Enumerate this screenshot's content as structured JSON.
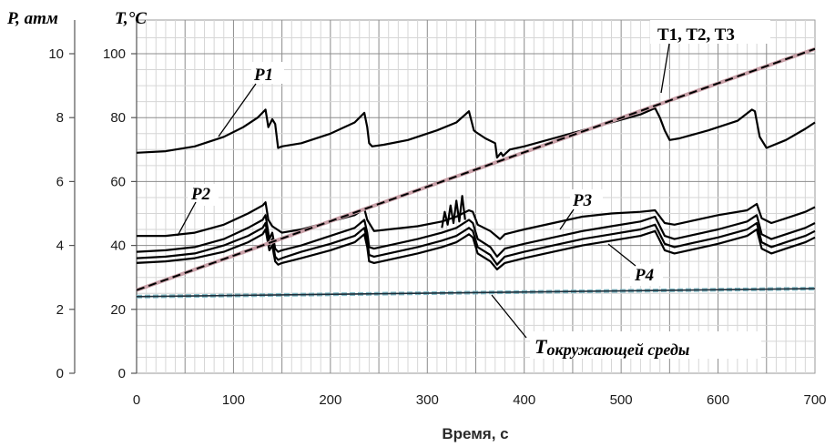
{
  "chart_data": {
    "type": "line",
    "left_axis_label": "P, атм",
    "right_axis_label": "T,°C",
    "xlabel": "Время, с",
    "xlim": [
      0,
      700
    ],
    "x_ticks": [
      "0",
      "100",
      "200",
      "300",
      "400",
      "500",
      "600",
      "700"
    ],
    "p_lim": [
      0,
      10
    ],
    "p_ticks": [
      "0",
      "2",
      "4",
      "6",
      "8",
      "10"
    ],
    "t_lim": [
      0,
      100
    ],
    "t_ticks": [
      "0",
      "20",
      "40",
      "60",
      "80",
      "100"
    ],
    "grid": true,
    "annotations": {
      "p1": "P1",
      "p2": "P2",
      "p3": "P3",
      "p4": "P4",
      "t123": "T1, T2, T3",
      "tamb_main": "T",
      "tamb_sub": "окружающей среды"
    },
    "series": [
      {
        "axis": "P",
        "x": [
          0,
          30,
          60,
          90,
          110,
          125,
          133,
          136,
          140,
          143,
          146,
          150,
          170,
          200,
          225,
          235,
          238,
          240,
          243,
          255,
          280,
          310,
          330,
          343,
          348,
          350,
          360,
          370,
          372,
          376,
          378,
          385,
          400,
          430,
          460,
          490,
          520,
          535,
          540,
          545,
          550,
          560,
          590,
          620,
          635,
          638,
          643,
          650,
          670,
          690,
          700
        ],
        "y": [
          6.9,
          6.95,
          7.1,
          7.4,
          7.7,
          8.0,
          8.25,
          7.7,
          7.95,
          7.8,
          7.05,
          7.1,
          7.2,
          7.5,
          7.85,
          8.15,
          7.7,
          7.2,
          7.1,
          7.15,
          7.3,
          7.6,
          7.85,
          8.2,
          7.6,
          7.55,
          7.35,
          7.2,
          6.75,
          6.9,
          6.8,
          7.0,
          7.1,
          7.35,
          7.6,
          7.85,
          8.1,
          8.3,
          8.0,
          7.6,
          7.3,
          7.35,
          7.6,
          7.9,
          8.25,
          8.2,
          7.4,
          7.05,
          7.3,
          7.65,
          7.85
        ]
      },
      {
        "axis": "P",
        "x": [
          0,
          30,
          60,
          90,
          115,
          130,
          133,
          136,
          140,
          145,
          150,
          170,
          200,
          225,
          235,
          238,
          245,
          260,
          290,
          315,
          330,
          343,
          347,
          352,
          365,
          375,
          380,
          400,
          430,
          460,
          490,
          520,
          535,
          545,
          555,
          570,
          600,
          630,
          640,
          645,
          655,
          670,
          690,
          700
        ],
        "y": [
          4.3,
          4.3,
          4.4,
          4.65,
          5.0,
          5.25,
          5.35,
          4.8,
          4.6,
          4.5,
          4.4,
          4.5,
          4.75,
          4.95,
          5.15,
          4.8,
          4.45,
          4.5,
          4.6,
          4.75,
          4.9,
          5.1,
          5.05,
          4.65,
          4.45,
          4.2,
          4.35,
          4.5,
          4.7,
          4.9,
          5.0,
          5.05,
          5.1,
          4.7,
          4.65,
          4.75,
          4.95,
          5.1,
          5.3,
          4.85,
          4.7,
          4.85,
          5.05,
          5.2
        ]
      },
      {
        "axis": "P",
        "x": [
          0,
          30,
          60,
          90,
          115,
          130,
          133,
          137,
          140,
          143,
          146,
          150,
          170,
          200,
          225,
          235,
          238,
          240,
          245,
          260,
          290,
          315,
          330,
          343,
          347,
          352,
          365,
          372,
          380,
          400,
          430,
          460,
          490,
          520,
          535,
          545,
          555,
          570,
          600,
          630,
          640,
          645,
          655,
          670,
          690,
          700
        ],
        "y": [
          3.8,
          3.85,
          3.95,
          4.2,
          4.55,
          4.8,
          4.95,
          4.2,
          4.4,
          3.9,
          3.8,
          3.85,
          4.0,
          4.3,
          4.55,
          4.8,
          4.4,
          3.95,
          3.9,
          4.0,
          4.2,
          4.4,
          4.55,
          4.8,
          4.7,
          4.2,
          3.95,
          3.65,
          3.9,
          4.05,
          4.25,
          4.45,
          4.6,
          4.75,
          4.9,
          4.3,
          4.2,
          4.3,
          4.5,
          4.75,
          4.95,
          4.35,
          4.2,
          4.35,
          4.55,
          4.7
        ]
      },
      {
        "axis": "P",
        "x": [
          0,
          30,
          60,
          90,
          115,
          130,
          133,
          137,
          140,
          143,
          146,
          150,
          170,
          200,
          225,
          235,
          238,
          240,
          245,
          260,
          290,
          315,
          330,
          343,
          347,
          352,
          365,
          372,
          380,
          400,
          430,
          460,
          490,
          520,
          535,
          545,
          555,
          570,
          600,
          630,
          640,
          645,
          655,
          670,
          690,
          700
        ],
        "y": [
          3.6,
          3.65,
          3.75,
          4.0,
          4.3,
          4.55,
          4.7,
          4.0,
          4.2,
          3.65,
          3.55,
          3.6,
          3.8,
          4.05,
          4.3,
          4.55,
          4.15,
          3.7,
          3.65,
          3.75,
          3.95,
          4.15,
          4.3,
          4.55,
          4.45,
          3.95,
          3.7,
          3.4,
          3.65,
          3.8,
          4.0,
          4.2,
          4.35,
          4.5,
          4.65,
          4.05,
          3.95,
          4.05,
          4.25,
          4.5,
          4.7,
          4.1,
          3.95,
          4.1,
          4.3,
          4.45
        ]
      },
      {
        "axis": "P",
        "x": [
          0,
          30,
          60,
          90,
          115,
          130,
          133,
          137,
          140,
          143,
          146,
          150,
          170,
          200,
          225,
          235,
          238,
          240,
          245,
          260,
          290,
          315,
          330,
          343,
          347,
          352,
          365,
          372,
          380,
          400,
          430,
          460,
          490,
          520,
          535,
          545,
          555,
          570,
          600,
          630,
          640,
          645,
          655,
          670,
          690,
          700
        ],
        "y": [
          3.45,
          3.5,
          3.6,
          3.8,
          4.1,
          4.35,
          4.5,
          3.85,
          4.0,
          3.5,
          3.4,
          3.45,
          3.6,
          3.85,
          4.1,
          4.35,
          3.95,
          3.5,
          3.45,
          3.55,
          3.75,
          3.95,
          4.1,
          4.35,
          4.25,
          3.75,
          3.5,
          3.25,
          3.45,
          3.6,
          3.8,
          4.0,
          4.15,
          4.3,
          4.45,
          3.85,
          3.75,
          3.85,
          4.05,
          4.3,
          4.5,
          3.9,
          3.75,
          3.9,
          4.1,
          4.25
        ]
      },
      {
        "axis": "P",
        "x": [
          315,
          318,
          321,
          324,
          327,
          330,
          333,
          336,
          339
        ],
        "y": [
          4.55,
          5.05,
          4.65,
          5.25,
          4.7,
          5.4,
          4.75,
          5.55,
          4.8
        ]
      },
      {
        "axis": "T",
        "x": [
          0,
          700
        ],
        "y": [
          26,
          101.5
        ]
      },
      {
        "axis": "T",
        "x": [
          0,
          700
        ],
        "y": [
          24,
          26.5
        ]
      }
    ]
  }
}
